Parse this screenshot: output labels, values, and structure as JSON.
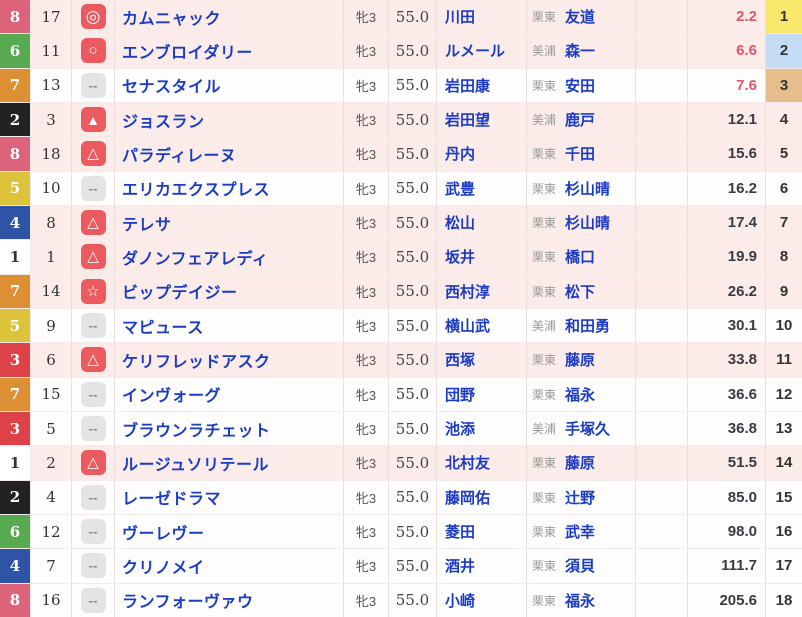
{
  "colors": {
    "link_blue": "#1c3bc4",
    "odds_hot_red": "#e0556a",
    "mark_set_bg": "#ea5a5e",
    "mark_none_bg": "#e4e4e4",
    "row_marked_bg": "#fbecea",
    "row_default_bg": "#fdfdfd"
  },
  "waku_colors": {
    "1": {
      "bg": "#ffffff",
      "fg": "#333333"
    },
    "2": {
      "bg": "#222222",
      "fg": "#ffffff"
    },
    "3": {
      "bg": "#dc4248",
      "fg": "#ffffff"
    },
    "4": {
      "bg": "#2f54a5",
      "fg": "#ffffff"
    },
    "5": {
      "bg": "#ddc23b",
      "fg": "#ffffff"
    },
    "6": {
      "bg": "#57aa4f",
      "fg": "#ffffff"
    },
    "7": {
      "bg": "#dd8f33",
      "fg": "#ffffff"
    },
    "8": {
      "bg": "#dc6379",
      "fg": "#ffffff"
    }
  },
  "pop_colors": {
    "1": "#f7e76a",
    "2": "#c5dcf7",
    "3": "#e6be8e"
  },
  "rows": [
    {
      "waku": 8,
      "num": 17,
      "mark": "◎",
      "name": "カムニャック",
      "sexage": "牝3",
      "weight": "55.0",
      "jockey": "川田",
      "center": "栗東",
      "trainer": "友道",
      "odds": "2.2",
      "pop": 1
    },
    {
      "waku": 6,
      "num": 11,
      "mark": "○",
      "name": "エンブロイダリー",
      "sexage": "牝3",
      "weight": "55.0",
      "jockey": "ルメール",
      "center": "美浦",
      "trainer": "森一",
      "odds": "6.6",
      "pop": 2
    },
    {
      "waku": 7,
      "num": 13,
      "mark": "--",
      "name": "セナスタイル",
      "sexage": "牝3",
      "weight": "55.0",
      "jockey": "岩田康",
      "center": "栗東",
      "trainer": "安田",
      "odds": "7.6",
      "pop": 3
    },
    {
      "waku": 2,
      "num": 3,
      "mark": "▲",
      "name": "ジョスラン",
      "sexage": "牝3",
      "weight": "55.0",
      "jockey": "岩田望",
      "center": "美浦",
      "trainer": "鹿戸",
      "odds": "12.1",
      "pop": 4
    },
    {
      "waku": 8,
      "num": 18,
      "mark": "△",
      "name": "パラディレーヌ",
      "sexage": "牝3",
      "weight": "55.0",
      "jockey": "丹内",
      "center": "栗東",
      "trainer": "千田",
      "odds": "15.6",
      "pop": 5
    },
    {
      "waku": 5,
      "num": 10,
      "mark": "--",
      "name": "エリカエクスプレス",
      "sexage": "牝3",
      "weight": "55.0",
      "jockey": "武豊",
      "center": "栗東",
      "trainer": "杉山晴",
      "odds": "16.2",
      "pop": 6
    },
    {
      "waku": 4,
      "num": 8,
      "mark": "△",
      "name": "テレサ",
      "sexage": "牝3",
      "weight": "55.0",
      "jockey": "松山",
      "center": "栗東",
      "trainer": "杉山晴",
      "odds": "17.4",
      "pop": 7
    },
    {
      "waku": 1,
      "num": 1,
      "mark": "△",
      "name": "ダノンフェアレディ",
      "sexage": "牝3",
      "weight": "55.0",
      "jockey": "坂井",
      "center": "栗東",
      "trainer": "橋口",
      "odds": "19.9",
      "pop": 8
    },
    {
      "waku": 7,
      "num": 14,
      "mark": "☆",
      "name": "ビップデイジー",
      "sexage": "牝3",
      "weight": "55.0",
      "jockey": "西村淳",
      "center": "栗東",
      "trainer": "松下",
      "odds": "26.2",
      "pop": 9
    },
    {
      "waku": 5,
      "num": 9,
      "mark": "--",
      "name": "マピュース",
      "sexage": "牝3",
      "weight": "55.0",
      "jockey": "横山武",
      "center": "美浦",
      "trainer": "和田勇",
      "odds": "30.1",
      "pop": 10
    },
    {
      "waku": 3,
      "num": 6,
      "mark": "△",
      "name": "ケリフレッドアスク",
      "sexage": "牝3",
      "weight": "55.0",
      "jockey": "西塚",
      "center": "栗東",
      "trainer": "藤原",
      "odds": "33.8",
      "pop": 11
    },
    {
      "waku": 7,
      "num": 15,
      "mark": "--",
      "name": "インヴォーグ",
      "sexage": "牝3",
      "weight": "55.0",
      "jockey": "団野",
      "center": "栗東",
      "trainer": "福永",
      "odds": "36.6",
      "pop": 12
    },
    {
      "waku": 3,
      "num": 5,
      "mark": "--",
      "name": "ブラウンラチェット",
      "sexage": "牝3",
      "weight": "55.0",
      "jockey": "池添",
      "center": "美浦",
      "trainer": "手塚久",
      "odds": "36.8",
      "pop": 13
    },
    {
      "waku": 1,
      "num": 2,
      "mark": "△",
      "name": "ルージュソリテール",
      "sexage": "牝3",
      "weight": "55.0",
      "jockey": "北村友",
      "center": "栗東",
      "trainer": "藤原",
      "odds": "51.5",
      "pop": 14
    },
    {
      "waku": 2,
      "num": 4,
      "mark": "--",
      "name": "レーゼドラマ",
      "sexage": "牝3",
      "weight": "55.0",
      "jockey": "藤岡佑",
      "center": "栗東",
      "trainer": "辻野",
      "odds": "85.0",
      "pop": 15
    },
    {
      "waku": 6,
      "num": 12,
      "mark": "--",
      "name": "ヴーレヴー",
      "sexage": "牝3",
      "weight": "55.0",
      "jockey": "菱田",
      "center": "栗東",
      "trainer": "武幸",
      "odds": "98.0",
      "pop": 16
    },
    {
      "waku": 4,
      "num": 7,
      "mark": "--",
      "name": "クリノメイ",
      "sexage": "牝3",
      "weight": "55.0",
      "jockey": "酒井",
      "center": "栗東",
      "trainer": "須貝",
      "odds": "111.7",
      "pop": 17
    },
    {
      "waku": 8,
      "num": 16,
      "mark": "--",
      "name": "ランフォーヴァウ",
      "sexage": "牝3",
      "weight": "55.0",
      "jockey": "小崎",
      "center": "栗東",
      "trainer": "福永",
      "odds": "205.6",
      "pop": 18
    }
  ]
}
